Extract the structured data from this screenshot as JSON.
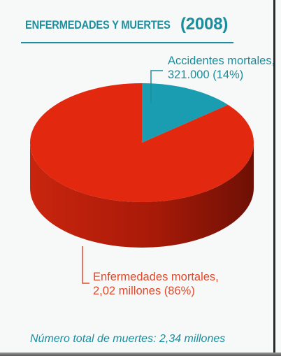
{
  "chart_data": {
    "type": "pie",
    "title": "ENFERMEDADES Y MUERTES",
    "title_year": "(2008)",
    "slices": [
      {
        "label": "Accidentes mortales,",
        "value_text": "321.000 (14%)",
        "value": 321000,
        "percent": 14,
        "color": "#1a9db0"
      },
      {
        "label": "Enfermedades mortales,",
        "value_text": "2,02 millones (86%)",
        "value": 2020000,
        "percent": 86,
        "color": "#e2280f"
      }
    ],
    "footnote": "Número total de muertes: 2,34 millones"
  },
  "colors": {
    "accent": "#1b8e9e",
    "enfermedades_label": "#e04a2c",
    "pie_red": "#e2280f",
    "pie_red_side": "#a81a08",
    "pie_teal": "#1a9db0"
  }
}
